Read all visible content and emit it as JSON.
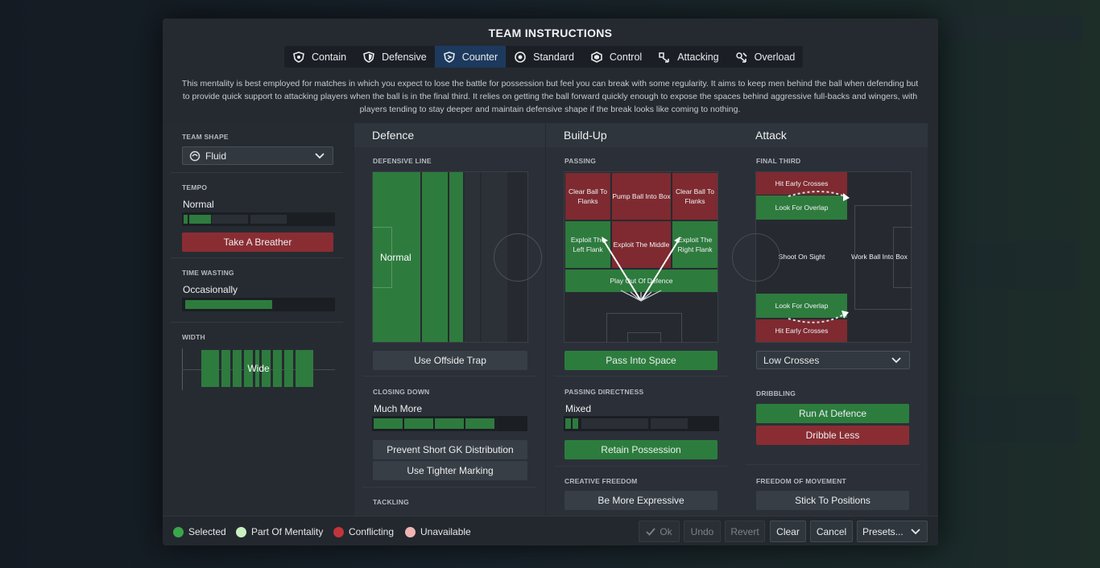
{
  "title": "TEAM INSTRUCTIONS",
  "tabs": [
    {
      "label": "Contain",
      "icon": "contain-shield-icon"
    },
    {
      "label": "Defensive",
      "icon": "defensive-shield-icon"
    },
    {
      "label": "Counter",
      "icon": "counter-icon",
      "active": true
    },
    {
      "label": "Standard",
      "icon": "standard-ball-icon"
    },
    {
      "label": "Control",
      "icon": "control-icon"
    },
    {
      "label": "Attacking",
      "icon": "attacking-icon"
    },
    {
      "label": "Overload",
      "icon": "overload-icon"
    }
  ],
  "description": "This mentality is best employed for matches in which you expect to lose the battle for possession but feel you can break with some regularity.  It aims to keep men behind the ball when defending but to provide quick support to attacking players when the ball is in the final third. It relies on getting the ball forward quickly enough to expose the spaces behind aggressive full-backs and wingers, with players tending to stay deeper and maintain defensive shape if the break looks like coming to nothing.",
  "left": {
    "team_shape_label": "TEAM SHAPE",
    "team_shape_value": "Fluid",
    "tempo_label": "TEMPO",
    "tempo_value": "Normal",
    "tempo_level": 0.21,
    "tempo_button": "Take A Breather",
    "time_wasting_label": "TIME WASTING",
    "time_wasting_value": "Occasionally",
    "time_wasting_level": 0.58,
    "width_label": "WIDTH",
    "width_value": "Wide"
  },
  "defence": {
    "heading": "Defence",
    "defensive_line_label": "DEFENSIVE LINE",
    "defensive_line_value": "Normal",
    "offside_button": "Use Offside Trap",
    "closing_down_label": "CLOSING DOWN",
    "closing_down_value": "Much More",
    "closing_down_level": 0.79,
    "gk_button": "Prevent Short GK Distribution",
    "marking_button": "Use Tighter Marking",
    "tackling_label": "TACKLING"
  },
  "buildup": {
    "heading": "Build-Up",
    "passing_label": "PASSING",
    "cells": {
      "clear_left": "Clear Ball To Flanks",
      "pump": "Pump Ball Into Box",
      "clear_right": "Clear Ball To Flanks",
      "exploit_left": "Exploit The Left Flank",
      "exploit_middle": "Exploit The Middle",
      "exploit_right": "Exploit The Right Flank",
      "play_out": "Play Out Of Defence"
    },
    "space_button": "Pass Into Space",
    "directness_label": "PASSING DIRECTNESS",
    "directness_value": "Mixed",
    "directness_level": 0.1,
    "retain_button": "Retain Possession",
    "creative_label": "CREATIVE FREEDOM",
    "expressive_button": "Be More Expressive"
  },
  "attack": {
    "heading": "Attack",
    "final_third_label": "FINAL THIRD",
    "cells": {
      "hit_early_top": "Hit Early Crosses",
      "overlap_top": "Look For Overlap",
      "shoot": "Shoot On Sight",
      "work_ball": "Work Ball Into Box",
      "overlap_bottom": "Look For Overlap",
      "hit_early_bottom": "Hit Early Crosses"
    },
    "crosses_value": "Low Crosses",
    "dribbling_label": "DRIBBLING",
    "run_button": "Run At Defence",
    "dribble_button": "Dribble Less",
    "freedom_label": "FREEDOM OF MOVEMENT",
    "positions_button": "Stick To Positions"
  },
  "legend": [
    {
      "label": "Selected",
      "color": "#3aa64a"
    },
    {
      "label": "Part Of Mentality",
      "color": "#c8f0c0"
    },
    {
      "label": "Conflicting",
      "color": "#c0353b"
    },
    {
      "label": "Unavailable",
      "color": "#efb4b4"
    }
  ],
  "footer": {
    "ok": "Ok",
    "undo": "Undo",
    "revert": "Revert",
    "clear": "Clear",
    "cancel": "Cancel",
    "presets": "Presets..."
  },
  "colors": {
    "accent_blue": "#1d3a5e",
    "selected_green": "#2e7b3e",
    "conflict_red": "#8a2d33"
  }
}
